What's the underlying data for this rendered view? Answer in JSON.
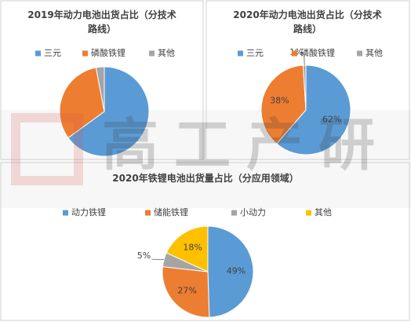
{
  "watermark": "高工产研",
  "chart_data": [
    {
      "type": "pie",
      "title": "2019年动力电池出货占比（分技术路线）",
      "categories": [
        "三元",
        "磷酸铁锂",
        "其他"
      ],
      "values": [
        65,
        32,
        3
      ],
      "colors": [
        "#5b9bd5",
        "#ed7d31",
        "#a5a5a5"
      ]
    },
    {
      "type": "pie",
      "title": "2020年动力电池出货占比（分技术路线）",
      "categories": [
        "三元",
        "磷酸铁锂",
        "其他"
      ],
      "values": [
        62,
        38,
        1
      ],
      "value_labels": [
        "62%",
        "38%",
        "1%"
      ],
      "colors": [
        "#5b9bd5",
        "#ed7d31",
        "#a5a5a5"
      ]
    },
    {
      "type": "pie",
      "title": "2020年铁锂电池出货量占比（分应用领域）",
      "categories": [
        "动力铁锂",
        "储能铁锂",
        "小动力",
        "其他"
      ],
      "values": [
        49,
        27,
        5,
        18
      ],
      "value_labels": [
        "49%",
        "27%",
        "5%",
        "18%"
      ],
      "colors": [
        "#5b9bd5",
        "#ed7d31",
        "#a5a5a5",
        "#ffc000"
      ]
    }
  ]
}
